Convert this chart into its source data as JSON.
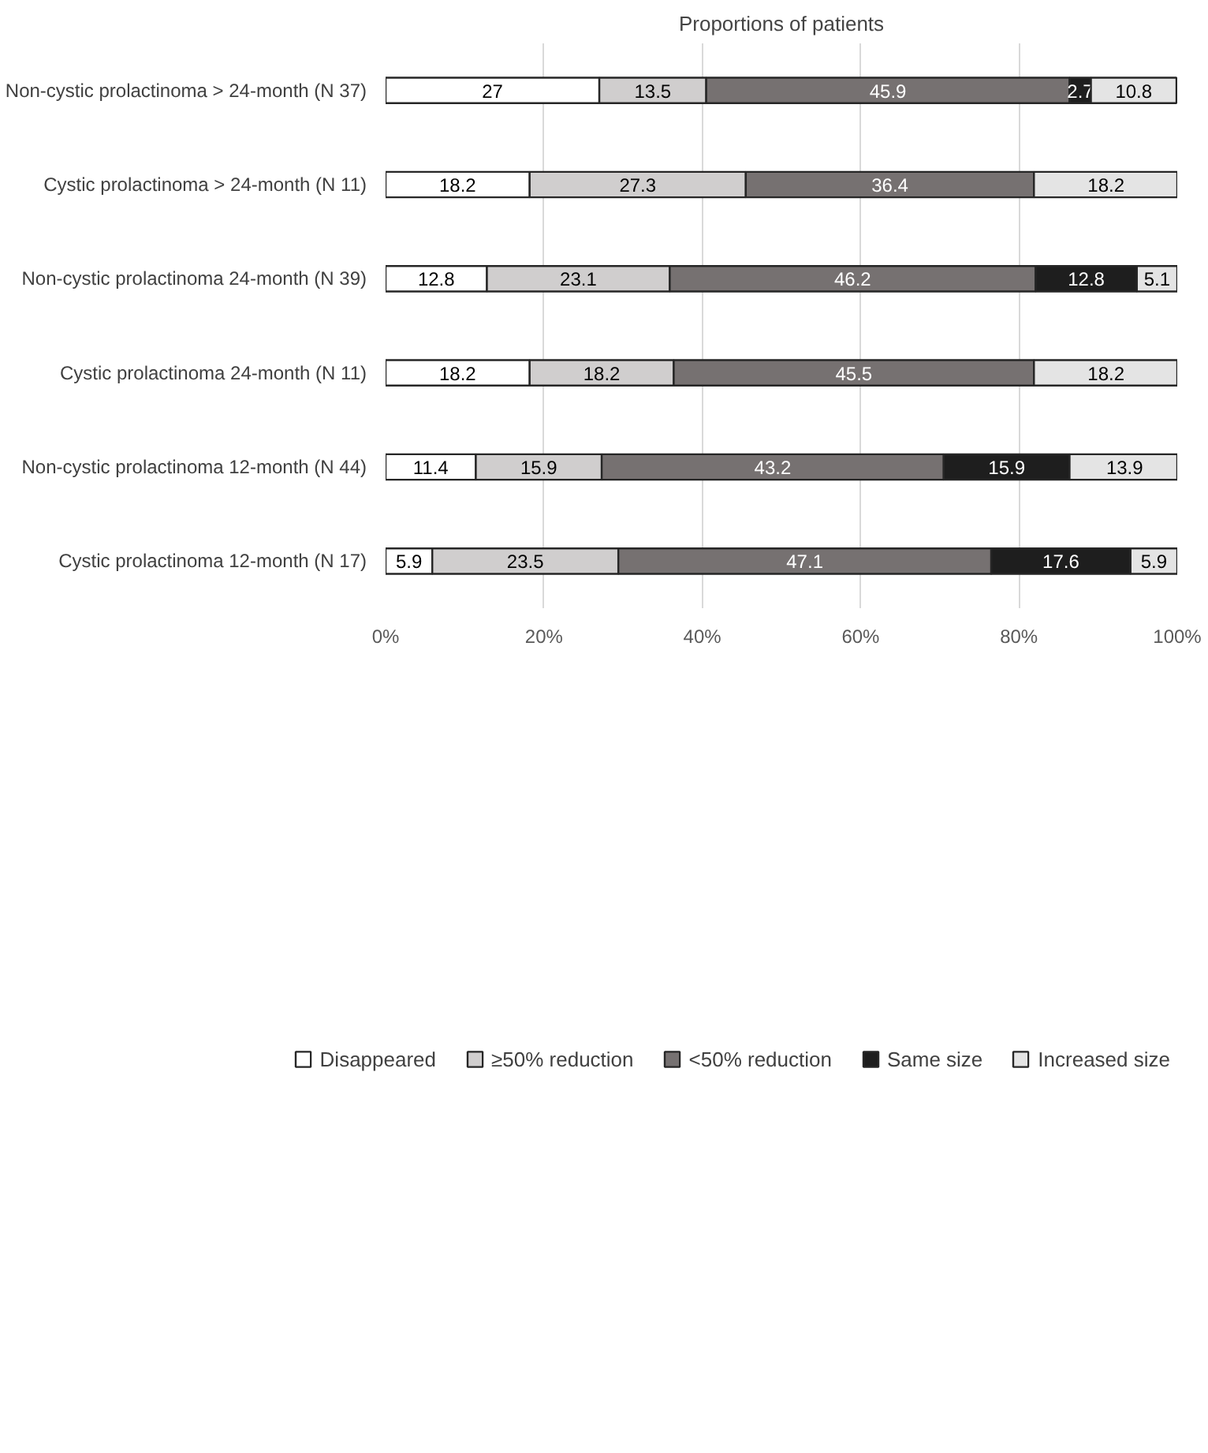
{
  "chart_data": {
    "type": "bar",
    "orientation": "horizontal",
    "stacked": true,
    "title": "Proportions of patients",
    "categories": [
      "Non-cystic prolactinoma > 24-month (N 37)",
      "Cystic prolactinoma > 24-month (N 11)",
      "Non-cystic prolactinoma 24-month (N 39)",
      "Cystic prolactinoma 24-month (N 11)",
      "Non-cystic prolactinoma 12-month (N 44)",
      "Cystic prolactinoma 12-month (N 17)"
    ],
    "series": [
      {
        "name": "Disappeared",
        "color": "#ffffff",
        "values": [
          27,
          18.2,
          12.8,
          18.2,
          11.4,
          5.9
        ]
      },
      {
        "name": "≥50% reduction",
        "color": "#d0cece",
        "values": [
          13.5,
          27.3,
          23.1,
          18.2,
          15.9,
          23.5
        ]
      },
      {
        "name": "<50% reduction",
        "color": "#767171",
        "values": [
          45.9,
          36.4,
          46.2,
          45.5,
          43.2,
          47.1
        ]
      },
      {
        "name": "Same size",
        "color": "#1e1e1e",
        "values": [
          2.7,
          null,
          12.8,
          null,
          15.9,
          17.6
        ]
      },
      {
        "name": "Increased size",
        "color": "#e4e4e4",
        "values": [
          10.8,
          18.2,
          5.1,
          18.2,
          13.9,
          5.9
        ]
      }
    ],
    "xlim": [
      0,
      100
    ],
    "xticks": [
      {
        "value": 0,
        "label": "0%"
      },
      {
        "value": 20,
        "label": "20%"
      },
      {
        "value": 40,
        "label": "40%"
      },
      {
        "value": 60,
        "label": "60%"
      },
      {
        "value": 80,
        "label": "80%"
      },
      {
        "value": 100,
        "label": "100%"
      }
    ],
    "grid": "x",
    "legend": "bottom",
    "data_labels": true
  }
}
